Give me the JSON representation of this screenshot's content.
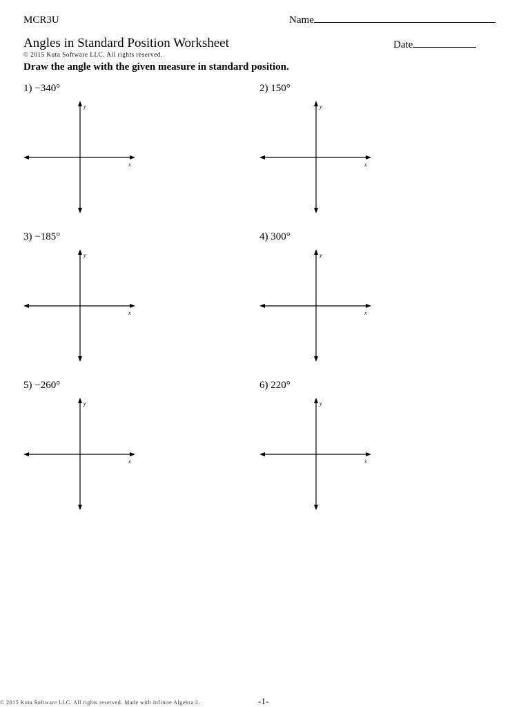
{
  "header": {
    "course": "MCR3U",
    "name_label": "Name",
    "title": "Angles in Standard Position Worksheet",
    "date_label": "Date",
    "copyright": "© 2015 Kuta Software LLC.  All rights reserved.",
    "instructions": "Draw the angle with the given measure in standard position."
  },
  "problems": [
    {
      "number": "1)",
      "angle": "−340°"
    },
    {
      "number": "2)",
      "angle": "150°"
    },
    {
      "number": "3)",
      "angle": "−185°"
    },
    {
      "number": "4)",
      "angle": "300°"
    },
    {
      "number": "5)",
      "angle": "−260°"
    },
    {
      "number": "6)",
      "angle": "220°"
    }
  ],
  "axis_labels": {
    "x": "x",
    "y": "y"
  },
  "footer": {
    "copyright": "© 2015 Kuta Software LLC.  All rights reserved.  Made with Infinite Algebra 2.",
    "page_number": "-1-"
  }
}
